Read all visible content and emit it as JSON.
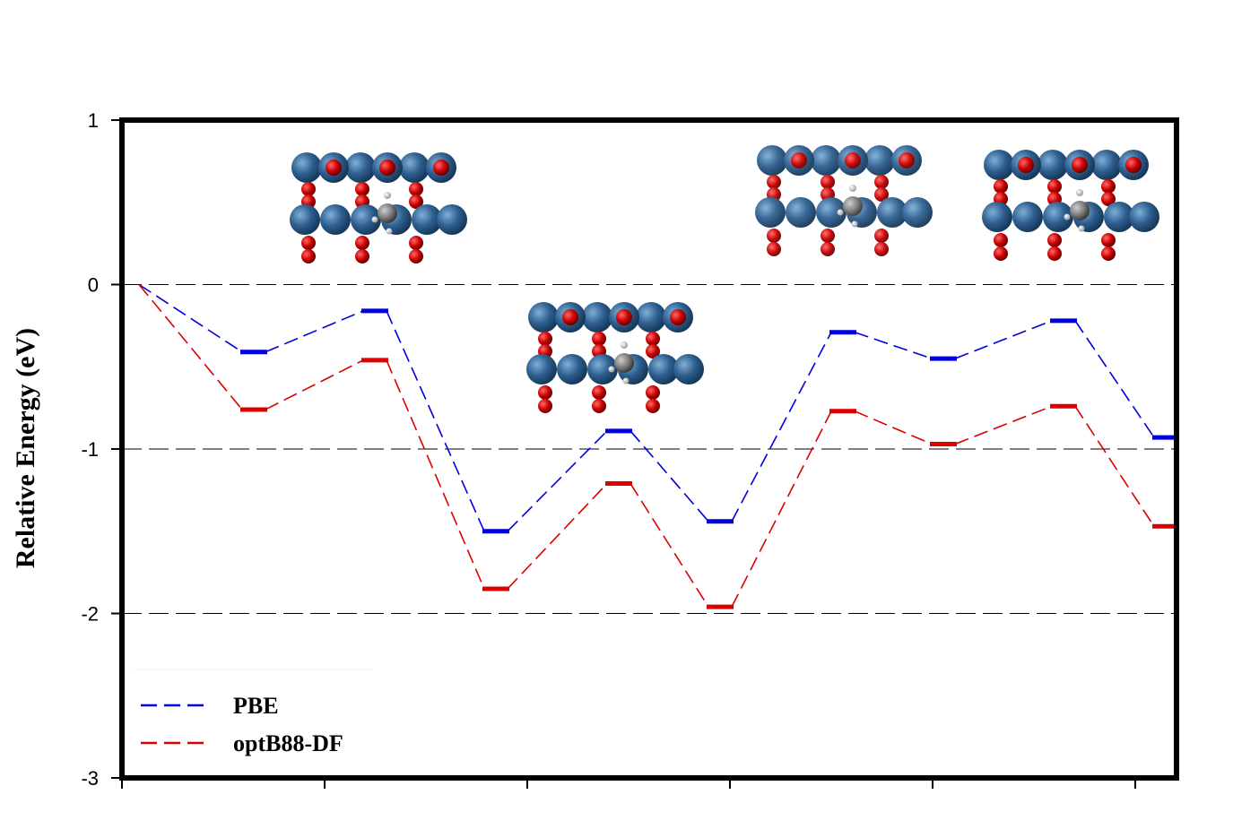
{
  "chart_data": {
    "type": "line",
    "title": "",
    "xlabel": "",
    "ylabel": "Relative Energy (eV)",
    "ylim": [
      -3,
      1
    ],
    "yticks": [
      1,
      0,
      -1,
      -2,
      -3
    ],
    "x_tick_count": 6,
    "grid": "dashed at -2, -1, 0",
    "legend_position": "bottom-left",
    "series": [
      {
        "name": "PBE",
        "color": "#0000dd",
        "levels": [
          {
            "x": 0,
            "y": 0.0
          },
          {
            "x": 1,
            "y": -0.41
          },
          {
            "x": 2,
            "y": -0.16
          },
          {
            "x": 3,
            "y": -1.5
          },
          {
            "x": 4,
            "y": -0.89
          },
          {
            "x": 5,
            "y": -1.44
          },
          {
            "x": 6,
            "y": -0.29
          },
          {
            "x": 7,
            "y": -0.45
          },
          {
            "x": 8,
            "y": -0.22
          },
          {
            "x": 9,
            "y": -0.93
          }
        ]
      },
      {
        "name": "optB88-DF",
        "color": "#dd0000",
        "levels": [
          {
            "x": 0,
            "y": 0.0
          },
          {
            "x": 1,
            "y": -0.76
          },
          {
            "x": 2,
            "y": -0.46
          },
          {
            "x": 3,
            "y": -1.85
          },
          {
            "x": 4,
            "y": -1.21
          },
          {
            "x": 5,
            "y": -1.96
          },
          {
            "x": 6,
            "y": -0.77
          },
          {
            "x": 7,
            "y": -0.97
          },
          {
            "x": 8,
            "y": -0.74
          },
          {
            "x": 9,
            "y": -1.47
          }
        ]
      }
    ],
    "insets": [
      {
        "name": "structure-1",
        "depicts": "slab model with adsorbed CH3 species",
        "anchor_x": 2
      },
      {
        "name": "structure-2",
        "depicts": "slab model with adsorbed species",
        "anchor_x": 4
      },
      {
        "name": "structure-3",
        "depicts": "slab model with adsorbed species",
        "anchor_x": 6
      },
      {
        "name": "structure-4",
        "depicts": "slab model with adsorbed species",
        "anchor_x": 8
      }
    ],
    "colors": {
      "metal_atom": "#2f6090",
      "oxygen_atom": "#cc0000",
      "carbon_atom": "#7a7a7a",
      "hydrogen_atom": "#e8e8e8"
    }
  }
}
